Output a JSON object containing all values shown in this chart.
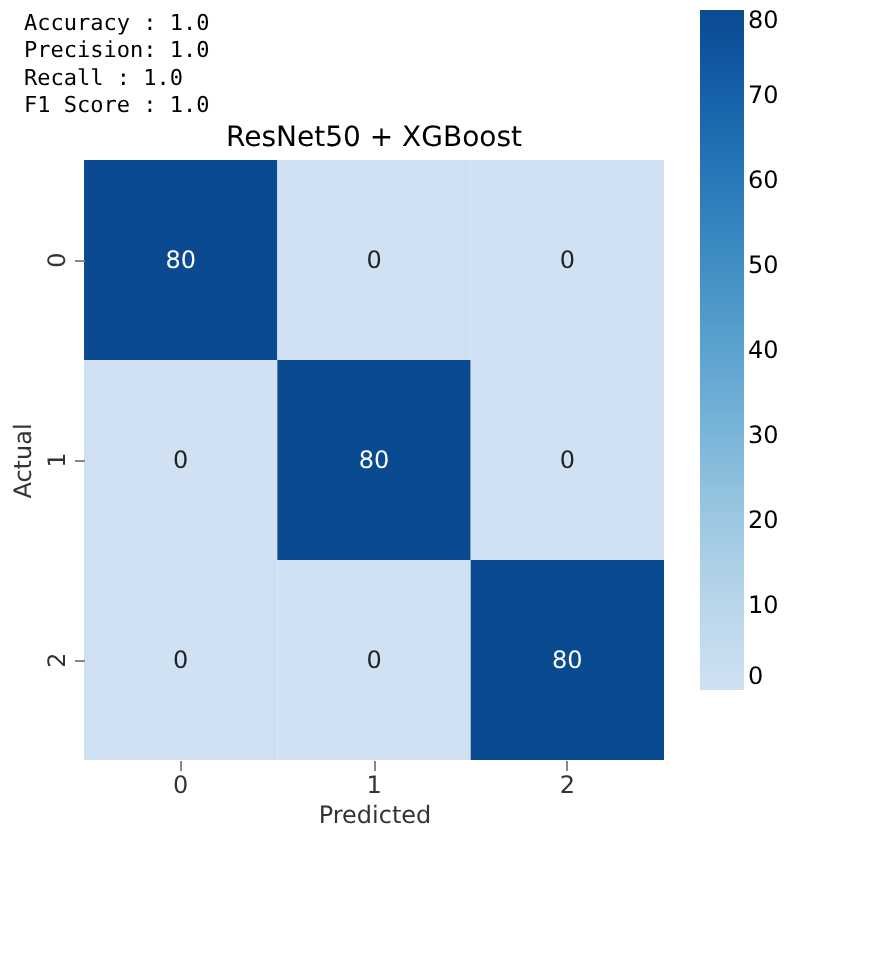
{
  "chart_data": {
    "type": "heatmap",
    "title": "ResNet50 + XGBoost",
    "xlabel": "Predicted",
    "ylabel": "Actual",
    "annotations": [
      "Accuracy : 1.0",
      "Precision: 1.0",
      "Recall   : 1.0",
      "F1 Score : 1.0"
    ],
    "categories": [
      "0",
      "1",
      "2"
    ],
    "y_categories": [
      "0",
      "1",
      "2"
    ],
    "cells": [
      [
        80,
        0,
        0
      ],
      [
        0,
        80,
        0
      ],
      [
        0,
        0,
        80
      ]
    ],
    "data_labels": true,
    "clim": [
      0,
      80
    ],
    "cticks": [
      0,
      10,
      20,
      30,
      40,
      50,
      60,
      70,
      80
    ]
  }
}
